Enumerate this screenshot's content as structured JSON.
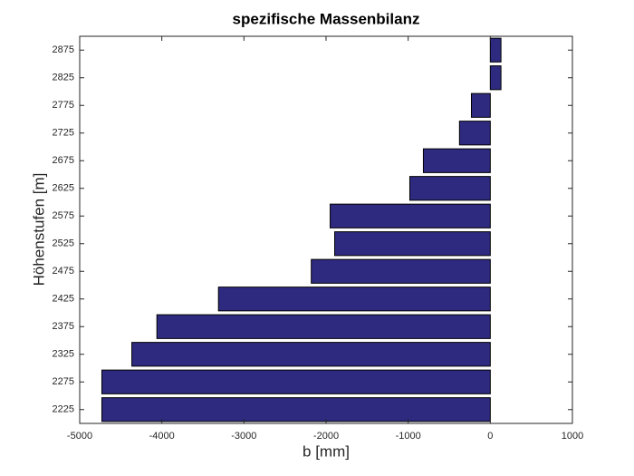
{
  "chart_data": {
    "type": "barh",
    "title": "spezifische Massenbilanz",
    "xlabel": "b [mm]",
    "ylabel": "Höhenstufen [m]",
    "categories": [
      "2225",
      "2275",
      "2325",
      "2375",
      "2425",
      "2475",
      "2525",
      "2575",
      "2625",
      "2675",
      "2725",
      "2775",
      "2825",
      "2875"
    ],
    "values": [
      -4730,
      -4730,
      -4365,
      -4060,
      -3310,
      -2180,
      -1895,
      -1950,
      -980,
      -815,
      -375,
      -230,
      130,
      130
    ],
    "color": "#2e2a80",
    "xlim": [
      -5000,
      1000
    ],
    "xticks": [
      -5000,
      -4000,
      -3000,
      -2000,
      -1000,
      0,
      1000
    ]
  }
}
